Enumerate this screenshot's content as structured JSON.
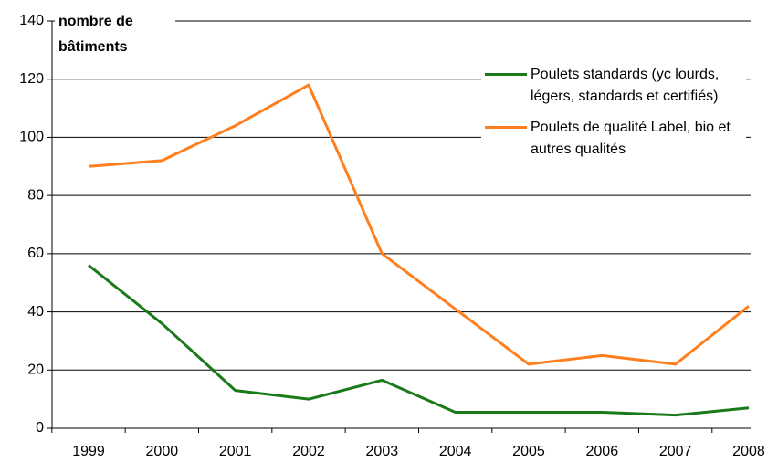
{
  "chart_data": {
    "type": "line",
    "y_label": [
      "nombre de",
      "bâtiments"
    ],
    "categories": [
      "1999",
      "2000",
      "2001",
      "2002",
      "2003",
      "2004",
      "2005",
      "2006",
      "2007",
      "2008"
    ],
    "series": [
      {
        "name": "Poulets standards (yc lourds, légers, standards et certifiés)",
        "color": "#1a7a1a",
        "values": [
          56,
          36,
          13,
          10,
          16.5,
          5.5,
          5.5,
          5.5,
          4.5,
          7
        ]
      },
      {
        "name": "Poulets de qualité Label, bio et autres qualités",
        "color": "#ff7f1e",
        "values": [
          90,
          92,
          104,
          118,
          60,
          41,
          22,
          25,
          22,
          42
        ]
      }
    ],
    "ylim": [
      0,
      140
    ],
    "yticks": [
      0,
      20,
      40,
      60,
      80,
      100,
      120,
      140
    ],
    "grid": true
  }
}
